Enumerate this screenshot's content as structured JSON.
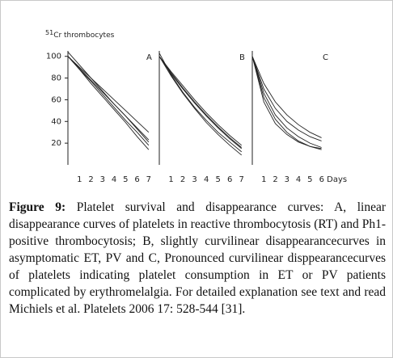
{
  "chart_data": [
    {
      "type": "line",
      "label": "A",
      "ylabel_sup": "51",
      "ylabel": "Cr thrombocytes",
      "x": [
        0,
        1,
        2,
        3,
        4,
        5,
        6,
        7
      ],
      "xlim": [
        0,
        7.5
      ],
      "xticks": [
        1,
        2,
        3,
        4,
        5,
        6,
        7
      ],
      "ylim": [
        0,
        105
      ],
      "yticks": [
        20,
        40,
        60,
        80,
        100
      ],
      "color": "#222222",
      "series": [
        {
          "values": [
            100,
            90,
            80,
            70,
            60,
            50,
            40,
            30
          ]
        },
        {
          "values": [
            100,
            89,
            78,
            67,
            56,
            45,
            34,
            23
          ]
        },
        {
          "values": [
            100,
            88,
            77,
            65,
            53,
            41,
            30,
            18
          ]
        },
        {
          "values": [
            100,
            88,
            75,
            63,
            51,
            39,
            26,
            14
          ]
        },
        {
          "values": [
            104,
            92,
            80,
            68,
            56,
            45,
            33,
            21
          ]
        }
      ]
    },
    {
      "type": "line",
      "label": "B",
      "x": [
        0,
        1,
        2,
        3,
        4,
        5,
        6,
        7
      ],
      "xlim": [
        0,
        7.5
      ],
      "xticks": [
        1,
        2,
        3,
        4,
        5,
        6,
        7
      ],
      "ylim": [
        0,
        105
      ],
      "color": "#222222",
      "series": [
        {
          "values": [
            100,
            84,
            70,
            57,
            45,
            34,
            24,
            15
          ]
        },
        {
          "values": [
            100,
            86,
            73,
            60,
            48,
            37,
            27,
            18
          ]
        },
        {
          "values": [
            100,
            82,
            66,
            52,
            39,
            28,
            18,
            9
          ]
        },
        {
          "values": [
            100,
            85,
            71,
            58,
            46,
            35,
            25,
            16
          ]
        },
        {
          "values": [
            103,
            83,
            67,
            53,
            41,
            30,
            21,
            12
          ]
        }
      ]
    },
    {
      "type": "line",
      "label": "C",
      "x": [
        0,
        1,
        2,
        3,
        4,
        5,
        6
      ],
      "xlim": [
        0,
        6.8
      ],
      "xticks": [
        1,
        2,
        3,
        4,
        5,
        {
          "value": 6,
          "label": "6 Days"
        }
      ],
      "ylim": [
        0,
        105
      ],
      "color": "#222222",
      "series": [
        {
          "values": [
            100,
            70,
            52,
            40,
            32,
            26,
            22
          ]
        },
        {
          "values": [
            100,
            62,
            42,
            30,
            22,
            17,
            14
          ]
        },
        {
          "values": [
            100,
            75,
            58,
            46,
            37,
            30,
            25
          ]
        },
        {
          "values": [
            100,
            66,
            46,
            34,
            26,
            20,
            16
          ]
        },
        {
          "values": [
            100,
            58,
            38,
            28,
            21,
            17,
            15
          ]
        }
      ]
    }
  ],
  "caption": {
    "label": "Figure 9:",
    "text": "Platelet survival and disappearance curves: A, linear disappearance curves of platelets in reactive thrombocytosis (RT) and Ph1-positive thrombocytosis; B, slightly curvilinear disappearancecurves in asymptomatic ET, PV and C, Pronounced curvilinear disppearancecurves of platelets indicating platelet consumption in ET or PV patients complicated by erythromelalgia. For detailed explanation see text and read Michiels et al. Platelets 2006 17: 528-544 [31]."
  }
}
